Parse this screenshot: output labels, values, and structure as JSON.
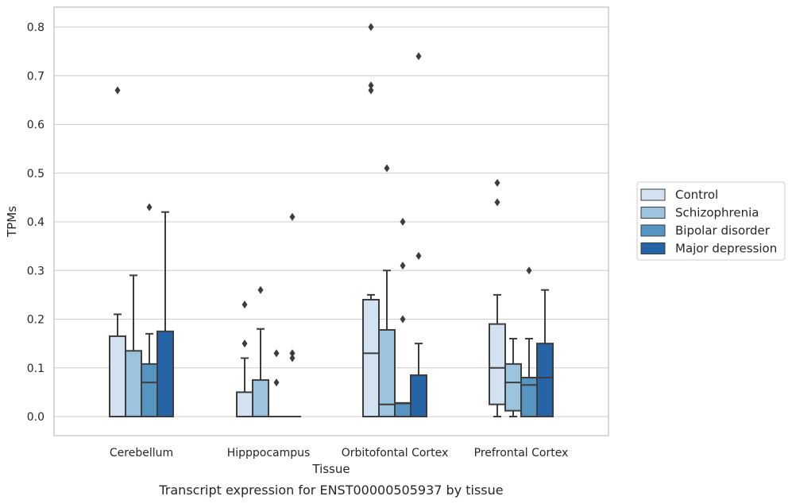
{
  "chart_data": {
    "type": "box",
    "caption": "Transcript expression for ENST00000505937 by tissue",
    "xlabel": "Tissue",
    "ylabel": "TPMs",
    "ylim": [
      -0.04,
      0.84
    ],
    "yticks": [
      0.0,
      0.1,
      0.2,
      0.3,
      0.4,
      0.5,
      0.6,
      0.7,
      0.8
    ],
    "ytick_labels": [
      "0.0",
      "0.1",
      "0.2",
      "0.3",
      "0.4",
      "0.5",
      "0.6",
      "0.7",
      "0.8"
    ],
    "grid": true,
    "legend_position": "right",
    "categories": [
      "Cerebellum",
      "Hipppocampus",
      "Orbitofontal Cortex",
      "Prefrontal Cortex"
    ],
    "series": [
      {
        "name": "Control",
        "color": "#d2e2f0",
        "boxes": [
          {
            "q1": 0.0,
            "median": 0.0,
            "q3": 0.165,
            "whisker_low": 0.0,
            "whisker_high": 0.21,
            "outliers": [
              0.67
            ]
          },
          {
            "q1": 0.0,
            "median": 0.0,
            "q3": 0.05,
            "whisker_low": 0.0,
            "whisker_high": 0.12,
            "outliers": [
              0.15,
              0.23
            ]
          },
          {
            "q1": 0.0,
            "median": 0.13,
            "q3": 0.24,
            "whisker_low": 0.0,
            "whisker_high": 0.25,
            "outliers": [
              0.67,
              0.68,
              0.8
            ]
          },
          {
            "q1": 0.025,
            "median": 0.1,
            "q3": 0.19,
            "whisker_low": 0.0,
            "whisker_high": 0.25,
            "outliers": [
              0.44,
              0.48
            ]
          }
        ]
      },
      {
        "name": "Schizophrenia",
        "color": "#9cc4de",
        "boxes": [
          {
            "q1": 0.0,
            "median": 0.0,
            "q3": 0.135,
            "whisker_low": 0.0,
            "whisker_high": 0.29,
            "outliers": []
          },
          {
            "q1": 0.0,
            "median": 0.0,
            "q3": 0.075,
            "whisker_low": 0.0,
            "whisker_high": 0.18,
            "outliers": [
              0.26
            ]
          },
          {
            "q1": 0.0,
            "median": 0.025,
            "q3": 0.178,
            "whisker_low": 0.0,
            "whisker_high": 0.3,
            "outliers": [
              0.51
            ]
          },
          {
            "q1": 0.012,
            "median": 0.07,
            "q3": 0.108,
            "whisker_low": 0.0,
            "whisker_high": 0.16,
            "outliers": []
          }
        ]
      },
      {
        "name": "Bipolar disorder",
        "color": "#5694c2",
        "boxes": [
          {
            "q1": 0.0,
            "median": 0.07,
            "q3": 0.108,
            "whisker_low": 0.0,
            "whisker_high": 0.17,
            "outliers": [
              0.43
            ]
          },
          {
            "q1": 0.0,
            "median": 0.0,
            "q3": 0.0,
            "whisker_low": 0.0,
            "whisker_high": 0.0,
            "outliers": [
              0.07,
              0.13
            ]
          },
          {
            "q1": 0.0,
            "median": 0.027,
            "q3": 0.028,
            "whisker_low": 0.0,
            "whisker_high": 0.028,
            "outliers": [
              0.2,
              0.31,
              0.4
            ]
          },
          {
            "q1": 0.0,
            "median": 0.065,
            "q3": 0.08,
            "whisker_low": 0.0,
            "whisker_high": 0.16,
            "outliers": [
              0.3
            ]
          }
        ]
      },
      {
        "name": "Major depression",
        "color": "#2564a6",
        "boxes": [
          {
            "q1": 0.0,
            "median": 0.0,
            "q3": 0.175,
            "whisker_low": 0.0,
            "whisker_high": 0.42,
            "outliers": []
          },
          {
            "q1": 0.0,
            "median": 0.0,
            "q3": 0.0,
            "whisker_low": 0.0,
            "whisker_high": 0.0,
            "outliers": [
              0.12,
              0.13,
              0.41
            ]
          },
          {
            "q1": 0.0,
            "median": 0.0,
            "q3": 0.085,
            "whisker_low": 0.0,
            "whisker_high": 0.15,
            "outliers": [
              0.33,
              0.74
            ]
          },
          {
            "q1": 0.0,
            "median": 0.08,
            "q3": 0.15,
            "whisker_low": 0.0,
            "whisker_high": 0.26,
            "outliers": []
          }
        ]
      }
    ]
  }
}
